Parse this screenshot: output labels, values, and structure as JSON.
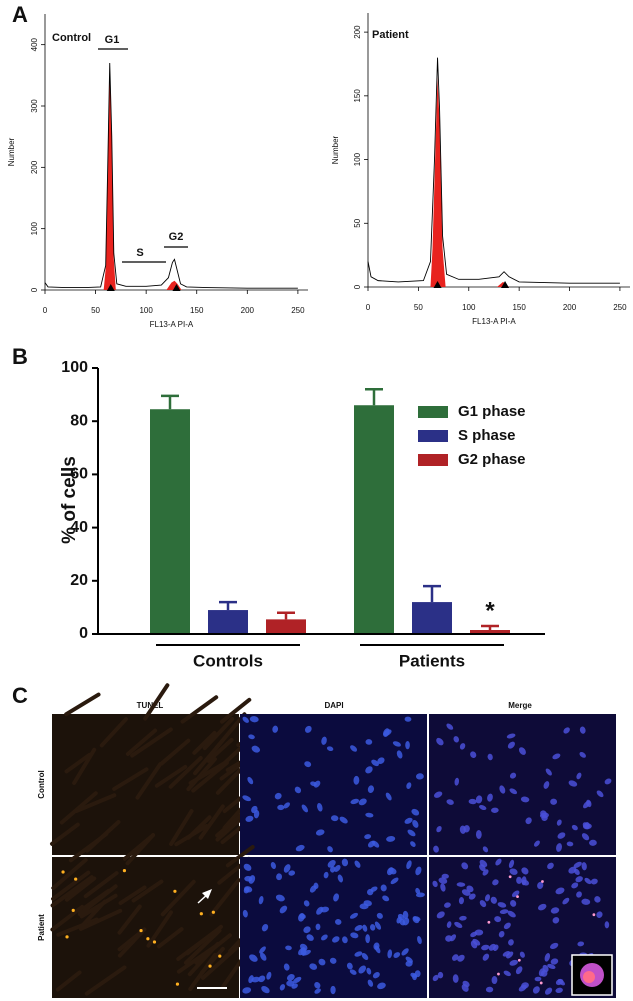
{
  "panel_labels": [
    "A",
    "B",
    "C"
  ],
  "chart_data": [
    {
      "type": "line",
      "title": "Control",
      "xlabel": "FL13-A PI-A",
      "ylabel": "Number",
      "annotations": [
        "G1",
        "S",
        "G2"
      ],
      "xlim": [
        0,
        260
      ],
      "ylim": [
        0,
        450
      ],
      "xticks": [
        0,
        50,
        100,
        150,
        200,
        250
      ],
      "yticks": [
        0,
        100,
        200,
        300,
        400
      ],
      "series": [
        {
          "color": "#000000",
          "fill": false,
          "x": [
            0,
            3,
            20,
            40,
            55,
            60,
            62,
            64,
            66,
            68,
            71,
            80,
            100,
            115,
            122,
            126,
            128,
            131,
            134,
            140,
            160,
            200,
            250
          ],
          "values": [
            12,
            5,
            4,
            4,
            5,
            40,
            200,
            370,
            250,
            60,
            10,
            6,
            6,
            8,
            20,
            45,
            50,
            30,
            10,
            5,
            4,
            3,
            3
          ]
        },
        {
          "color": "#e8231e",
          "fill": true,
          "x": [
            58,
            60,
            62,
            64,
            66,
            68,
            70,
            null,
            120,
            125,
            128,
            131,
            135
          ],
          "values": [
            0,
            35,
            190,
            360,
            240,
            50,
            0,
            null,
            0,
            12,
            15,
            10,
            0
          ]
        }
      ]
    },
    {
      "type": "line",
      "title": "Patient",
      "xlabel": "FL13-A PI-A",
      "ylabel": "Number",
      "xlim": [
        0,
        260
      ],
      "ylim": [
        0,
        215
      ],
      "xticks": [
        0,
        50,
        100,
        150,
        200,
        250
      ],
      "yticks": [
        0,
        50,
        100,
        150,
        200
      ],
      "series": [
        {
          "color": "#000000",
          "fill": false,
          "x": [
            0,
            3,
            10,
            30,
            55,
            62,
            66,
            69,
            71,
            74,
            78,
            90,
            110,
            130,
            135,
            140,
            150,
            200,
            250
          ],
          "values": [
            20,
            8,
            5,
            4,
            5,
            20,
            100,
            180,
            140,
            40,
            10,
            6,
            6,
            8,
            12,
            8,
            4,
            3,
            3
          ]
        },
        {
          "color": "#e8231e",
          "fill": true,
          "x": [
            62,
            64,
            67,
            69,
            71,
            74,
            77,
            null,
            128,
            134,
            140
          ],
          "values": [
            0,
            30,
            110,
            165,
            130,
            30,
            0,
            null,
            0,
            4,
            0
          ]
        }
      ]
    },
    {
      "type": "bar",
      "ylabel": "% of cells",
      "categories": [
        "Controls",
        "Patients"
      ],
      "ylim": [
        0,
        100
      ],
      "yticks": [
        0,
        20,
        40,
        60,
        80,
        100
      ],
      "legend": "upper right",
      "annotations": [
        "*"
      ],
      "series": [
        {
          "name": "G1 phase",
          "color": "#2e6e3a",
          "values": [
            84.5,
            86
          ],
          "errors": [
            5,
            6
          ]
        },
        {
          "name": "S phase",
          "color": "#2b3087",
          "values": [
            9,
            12
          ],
          "errors": [
            3,
            6
          ]
        },
        {
          "name": "G2 phase",
          "color": "#b02226",
          "values": [
            5.5,
            1.5
          ],
          "errors": [
            2.5,
            1.5
          ]
        }
      ]
    }
  ],
  "microscopy": {
    "columns": [
      "TUNEL",
      "DAPI",
      "Merge"
    ],
    "rows": [
      "Control",
      "Patient"
    ]
  }
}
